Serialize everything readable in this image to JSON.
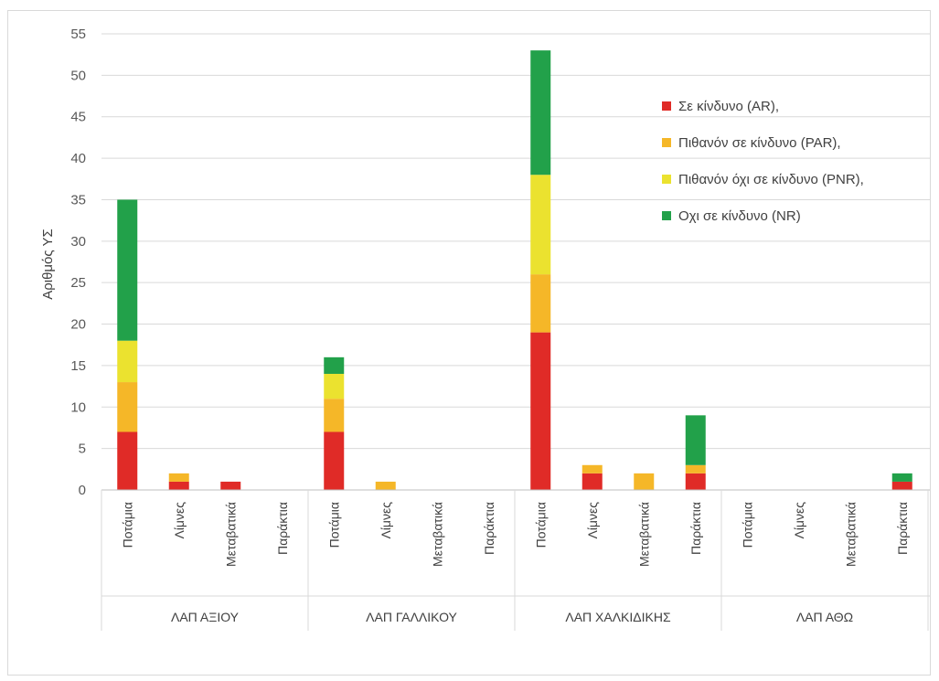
{
  "chart_data": {
    "type": "bar",
    "stacked": true,
    "title": "",
    "ylabel": "Αριθμός ΥΣ",
    "ylim": [
      0,
      55
    ],
    "yticks": [
      0,
      5,
      10,
      15,
      20,
      25,
      30,
      35,
      40,
      45,
      50,
      55
    ],
    "grid": true,
    "legend_position": "top-right",
    "groups": [
      {
        "name": "ΛΑΠ ΑΞΙΟΥ",
        "categories": [
          "Ποτάμια",
          "Λίμνες",
          "Μεταβατικά",
          "Παράκτια"
        ]
      },
      {
        "name": "ΛΑΠ ΓΑΛΛΙΚΟΥ",
        "categories": [
          "Ποτάμια",
          "Λίμνες",
          "Μεταβατικά",
          "Παράκτια"
        ]
      },
      {
        "name": "ΛΑΠ ΧΑΛΚΙΔΙΚΗΣ",
        "categories": [
          "Ποτάμια",
          "Λίμνες",
          "Μεταβατικά",
          "Παράκτια"
        ]
      },
      {
        "name": "ΛΑΠ ΑΘΩ",
        "categories": [
          "Ποτάμια",
          "Λίμνες",
          "Μεταβατικά",
          "Παράκτια"
        ]
      }
    ],
    "series": [
      {
        "name": "Σε κίνδυνο (AR),",
        "color": "#e02b27",
        "values": [
          7,
          1,
          1,
          0,
          7,
          0,
          0,
          0,
          19,
          2,
          0,
          2,
          0,
          0,
          0,
          1
        ]
      },
      {
        "name": "Πιθανόν σε κίνδυνο (PAR),",
        "color": "#f5b728",
        "values": [
          6,
          1,
          0,
          0,
          4,
          1,
          0,
          0,
          7,
          1,
          2,
          1,
          0,
          0,
          0,
          0
        ]
      },
      {
        "name": "Πιθανόν όχι σε κίνδυνο (PNR),",
        "color": "#ebe22f",
        "values": [
          5,
          0,
          0,
          0,
          3,
          0,
          0,
          0,
          12,
          0,
          0,
          0,
          0,
          0,
          0,
          0
        ]
      },
      {
        "name": "Οχι σε κίνδυνο (NR)",
        "color": "#22a14a",
        "values": [
          17,
          0,
          0,
          0,
          2,
          0,
          0,
          0,
          15,
          0,
          0,
          6,
          0,
          0,
          0,
          1
        ]
      }
    ]
  }
}
